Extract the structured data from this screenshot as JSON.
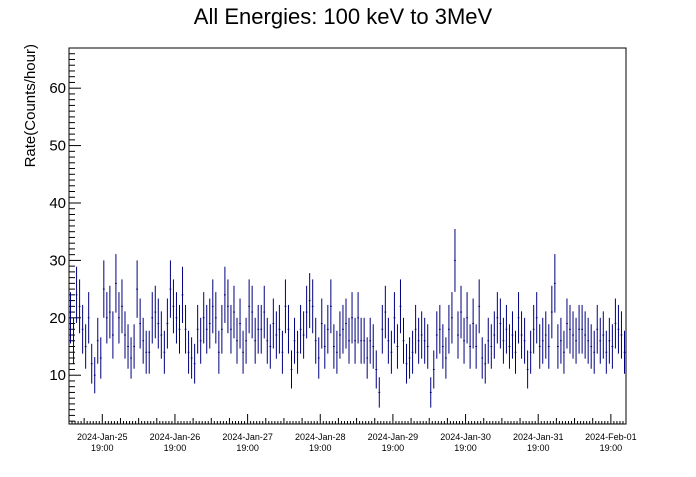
{
  "chart_data": {
    "type": "scatter",
    "style": "error-bars",
    "title": "All Energies:  100 keV to 3MeV",
    "xlabel": "",
    "ylabel": "Rate(Counts/hour)",
    "x_unit": "hour",
    "xlim": [
      "2024-Jan-25 08:00",
      "2024-Feb-02 00:00"
    ],
    "ylim": [
      1.5,
      67
    ],
    "y_ticks": [
      10,
      20,
      30,
      40,
      50,
      60
    ],
    "x_ticks": [
      {
        "date": "2024-Jan-25",
        "time": "19:00"
      },
      {
        "date": "2024-Jan-26",
        "time": "19:00"
      },
      {
        "date": "2024-Jan-27",
        "time": "19:00"
      },
      {
        "date": "2024-Jan-28",
        "time": "19:00"
      },
      {
        "date": "2024-Jan-29",
        "time": "19:00"
      },
      {
        "date": "2024-Jan-30",
        "time": "19:00"
      },
      {
        "date": "2024-Jan-31",
        "time": "19:00"
      },
      {
        "date": "2024-Feb-01",
        "time": "19:00"
      }
    ],
    "grid": false,
    "legend": "none",
    "colors": {
      "points": "#00007f",
      "axes": "#000000"
    },
    "series": [
      {
        "start": "2024-Jan-25 08:00",
        "step_hours": 1,
        "values": [
          20,
          16,
          24,
          22,
          18,
          15,
          20,
          12,
          10,
          16,
          13,
          25,
          20,
          21,
          17,
          26,
          20,
          22,
          17,
          15,
          13,
          15,
          25,
          19,
          16,
          14,
          14,
          20,
          21,
          19,
          17,
          14,
          19,
          25,
          22,
          20,
          18,
          24,
          18,
          14,
          13,
          12,
          18,
          16,
          20,
          18,
          19,
          22,
          20,
          14,
          18,
          24,
          22,
          18,
          21,
          16,
          19,
          14,
          16,
          22,
          21,
          16,
          18,
          18,
          21,
          16,
          15,
          19,
          17,
          18,
          14,
          22,
          18,
          11,
          16,
          14,
          18,
          17,
          21,
          23,
          22,
          16,
          13,
          19,
          15,
          18,
          22,
          15,
          14,
          17,
          18,
          19,
          16,
          20,
          16,
          20,
          16,
          16,
          13,
          16,
          15,
          11,
          7,
          18,
          21,
          16,
          14,
          20,
          15,
          22,
          16,
          12,
          13,
          14,
          18,
          16,
          17,
          16,
          15,
          7,
          11,
          17,
          18,
          15,
          13,
          18,
          20,
          30,
          17,
          21,
          16,
          20,
          15,
          19,
          15,
          22,
          13,
          12,
          16,
          15,
          17,
          20,
          19,
          16,
          18,
          15,
          17,
          14,
          20,
          17,
          16,
          11,
          14,
          18,
          20,
          15,
          16,
          17,
          15,
          21,
          26,
          15,
          16,
          14,
          19,
          18,
          17,
          16,
          18,
          18,
          17,
          16,
          15,
          14,
          18,
          16,
          17,
          14,
          16,
          15,
          19,
          18,
          17,
          14,
          16,
          15,
          20,
          22,
          17,
          16,
          16,
          15,
          18,
          17,
          16,
          21,
          22,
          15,
          16,
          17,
          18,
          20,
          16,
          15,
          14,
          17,
          18,
          16,
          19,
          20,
          14,
          15,
          17,
          16,
          18,
          17,
          15,
          16,
          15,
          30,
          16,
          20,
          19,
          15,
          17,
          16,
          9,
          8,
          11,
          18,
          16,
          19,
          15,
          16,
          20,
          25,
          18,
          20,
          16,
          17,
          22,
          15,
          16,
          18,
          12,
          14,
          16,
          18,
          17,
          16,
          19,
          15,
          10,
          11,
          18,
          15,
          17,
          16,
          20,
          21,
          15,
          12,
          18,
          16,
          17,
          16,
          13,
          19,
          14,
          16,
          15,
          17,
          16,
          18,
          25,
          16,
          19,
          17,
          11,
          15,
          12,
          18,
          16,
          19,
          14,
          16,
          17,
          18,
          12,
          16,
          20
        ]
      }
    ]
  }
}
